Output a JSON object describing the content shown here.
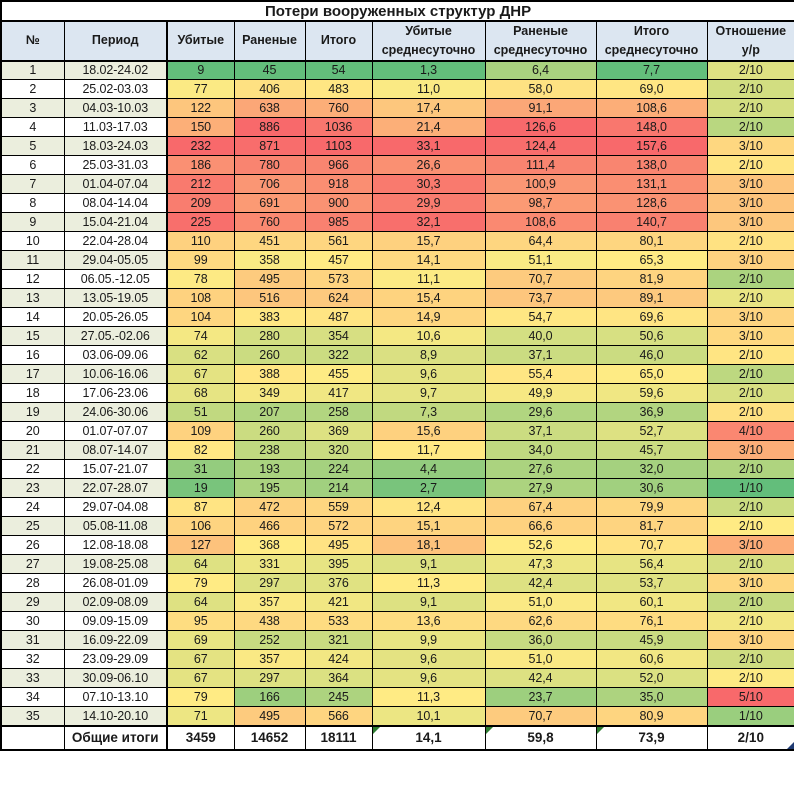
{
  "title": "Потери вооруженных структур ДНР",
  "columns": [
    "№",
    "Период",
    "Убитые",
    "Раненые",
    "Итого",
    "Убитые среднесуточно",
    "Раненые среднесуточно",
    "Итого среднесуточно",
    "Отношение у/р"
  ],
  "rows": [
    [
      "1",
      "18.02-24.02",
      "9",
      "45",
      "54",
      "1,3",
      "6,4",
      "7,7",
      "2/10"
    ],
    [
      "2",
      "25.02-03.03",
      "77",
      "406",
      "483",
      "11,0",
      "58,0",
      "69,0",
      "2/10"
    ],
    [
      "3",
      "04.03-10.03",
      "122",
      "638",
      "760",
      "17,4",
      "91,1",
      "108,6",
      "2/10"
    ],
    [
      "4",
      "11.03-17.03",
      "150",
      "886",
      "1036",
      "21,4",
      "126,6",
      "148,0",
      "2/10"
    ],
    [
      "5",
      "18.03-24.03",
      "232",
      "871",
      "1103",
      "33,1",
      "124,4",
      "157,6",
      "3/10"
    ],
    [
      "6",
      "25.03-31.03",
      "186",
      "780",
      "966",
      "26,6",
      "111,4",
      "138,0",
      "2/10"
    ],
    [
      "7",
      "01.04-07.04",
      "212",
      "706",
      "918",
      "30,3",
      "100,9",
      "131,1",
      "3/10"
    ],
    [
      "8",
      "08.04-14.04",
      "209",
      "691",
      "900",
      "29,9",
      "98,7",
      "128,6",
      "3/10"
    ],
    [
      "9",
      "15.04-21.04",
      "225",
      "760",
      "985",
      "32,1",
      "108,6",
      "140,7",
      "3/10"
    ],
    [
      "10",
      "22.04-28.04",
      "110",
      "451",
      "561",
      "15,7",
      "64,4",
      "80,1",
      "2/10"
    ],
    [
      "11",
      "29.04-05.05",
      "99",
      "358",
      "457",
      "14,1",
      "51,1",
      "65,3",
      "3/10"
    ],
    [
      "12",
      "06.05.-12.05",
      "78",
      "495",
      "573",
      "11,1",
      "70,7",
      "81,9",
      "2/10"
    ],
    [
      "13",
      "13.05-19.05",
      "108",
      "516",
      "624",
      "15,4",
      "73,7",
      "89,1",
      "2/10"
    ],
    [
      "14",
      "20.05-26.05",
      "104",
      "383",
      "487",
      "14,9",
      "54,7",
      "69,6",
      "3/10"
    ],
    [
      "15",
      "27.05.-02.06",
      "74",
      "280",
      "354",
      "10,6",
      "40,0",
      "50,6",
      "3/10"
    ],
    [
      "16",
      "03.06-09.06",
      "62",
      "260",
      "322",
      "8,9",
      "37,1",
      "46,0",
      "2/10"
    ],
    [
      "17",
      "10.06-16.06",
      "67",
      "388",
      "455",
      "9,6",
      "55,4",
      "65,0",
      "2/10"
    ],
    [
      "18",
      "17.06-23.06",
      "68",
      "349",
      "417",
      "9,7",
      "49,9",
      "59,6",
      "2/10"
    ],
    [
      "19",
      "24.06-30.06",
      "51",
      "207",
      "258",
      "7,3",
      "29,6",
      "36,9",
      "2/10"
    ],
    [
      "20",
      "01.07-07.07",
      "109",
      "260",
      "369",
      "15,6",
      "37,1",
      "52,7",
      "4/10"
    ],
    [
      "21",
      "08.07-14.07",
      "82",
      "238",
      "320",
      "11,7",
      "34,0",
      "45,7",
      "3/10"
    ],
    [
      "22",
      "15.07-21.07",
      "31",
      "193",
      "224",
      "4,4",
      "27,6",
      "32,0",
      "2/10"
    ],
    [
      "23",
      "22.07-28.07",
      "19",
      "195",
      "214",
      "2,7",
      "27,9",
      "30,6",
      "1/10"
    ],
    [
      "24",
      "29.07-04.08",
      "87",
      "472",
      "559",
      "12,4",
      "67,4",
      "79,9",
      "2/10"
    ],
    [
      "25",
      "05.08-11.08",
      "106",
      "466",
      "572",
      "15,1",
      "66,6",
      "81,7",
      "2/10"
    ],
    [
      "26",
      "12.08-18.08",
      "127",
      "368",
      "495",
      "18,1",
      "52,6",
      "70,7",
      "3/10"
    ],
    [
      "27",
      "19.08-25.08",
      "64",
      "331",
      "395",
      "9,1",
      "47,3",
      "56,4",
      "2/10"
    ],
    [
      "28",
      "26.08-01.09",
      "79",
      "297",
      "376",
      "11,3",
      "42,4",
      "53,7",
      "3/10"
    ],
    [
      "29",
      "02.09-08.09",
      "64",
      "357",
      "421",
      "9,1",
      "51,0",
      "60,1",
      "2/10"
    ],
    [
      "30",
      "09.09-15.09",
      "95",
      "438",
      "533",
      "13,6",
      "62,6",
      "76,1",
      "2/10"
    ],
    [
      "31",
      "16.09-22.09",
      "69",
      "252",
      "321",
      "9,9",
      "36,0",
      "45,9",
      "3/10"
    ],
    [
      "32",
      "23.09-29.09",
      "67",
      "357",
      "424",
      "9,6",
      "51,0",
      "60,6",
      "2/10"
    ],
    [
      "33",
      "30.09-06.10",
      "67",
      "297",
      "364",
      "9,6",
      "42,4",
      "52,0",
      "2/10"
    ],
    [
      "34",
      "07.10-13.10",
      "79",
      "166",
      "245",
      "11,3",
      "23,7",
      "35,0",
      "5/10"
    ],
    [
      "35",
      "14.10-20.10",
      "71",
      "495",
      "566",
      "10,1",
      "70,7",
      "80,9",
      "1/10"
    ]
  ],
  "totals": [
    "",
    "Общие итоги",
    "3459",
    "14652",
    "18111",
    "14,1",
    "59,8",
    "73,9",
    "2/10"
  ],
  "colors": {
    "header_bg": "#dce6f1",
    "label_shade": "#ebeedd",
    "scale_min_green": "#63BE7B",
    "scale_mid_yellow": "#FFEB84",
    "scale_max_red": "#F8696B",
    "border": "#000000",
    "text": "#1a1a1a",
    "flag_triangle_green": "#2E7D32",
    "corner_triangle_blue": "#1F3B73"
  },
  "color_overrides": [
    {
      "row": 1,
      "col": "wounded_daily",
      "color": "#A9D27F"
    }
  ]
}
